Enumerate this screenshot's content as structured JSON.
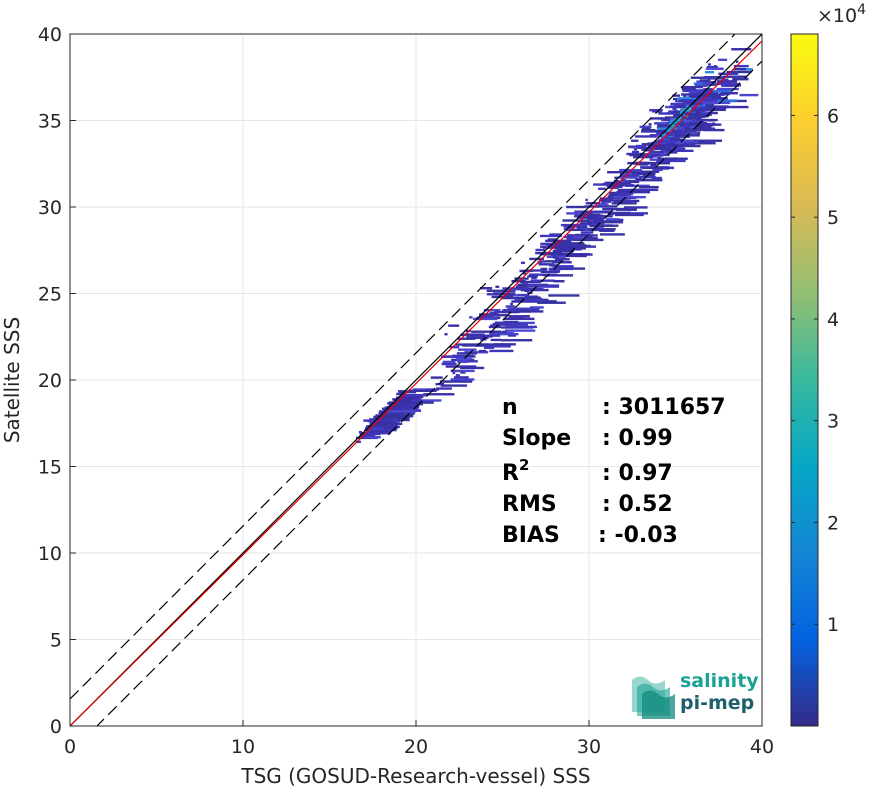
{
  "chart_data": {
    "type": "heatmap",
    "xlabel": "TSG (GOSUD-Research-vessel) SSS",
    "ylabel": "Satellite SSS",
    "xlim": [
      0,
      40
    ],
    "ylim": [
      0,
      40
    ],
    "xticks": [
      0,
      10,
      20,
      30,
      40
    ],
    "yticks": [
      0,
      5,
      10,
      15,
      20,
      25,
      30,
      35,
      40
    ],
    "grid": true,
    "colorbar": {
      "range": [
        0,
        68000
      ],
      "ticks": [
        1,
        2,
        3,
        4,
        5,
        6
      ],
      "exponent_label_base": "×10",
      "exponent_label_power": "4",
      "colormap": "parula"
    },
    "density_clusters": [
      {
        "x": 35.5,
        "y": 35.5,
        "x_spread": 4.0,
        "y_spread": 3.5,
        "weight": 1.0
      },
      {
        "x": 32.0,
        "y": 31.5,
        "x_spread": 8.0,
        "y_spread": 3.0,
        "weight": 0.55
      },
      {
        "x": 27.0,
        "y": 26.5,
        "x_spread": 9.0,
        "y_spread": 3.0,
        "weight": 0.3
      },
      {
        "x": 24.0,
        "y": 22.5,
        "x_spread": 6.0,
        "y_spread": 3.0,
        "weight": 0.2
      },
      {
        "x": 18.0,
        "y": 18.0,
        "x_spread": 2.0,
        "y_spread": 1.0,
        "weight": 0.5
      }
    ],
    "reference_lines": [
      {
        "name": "one-to-one",
        "color": "#000000",
        "style": "solid",
        "slope": 1.0,
        "intercept": 0.0
      },
      {
        "name": "regression",
        "color": "#e60000",
        "style": "solid",
        "slope": 0.99,
        "intercept": 0.0
      },
      {
        "name": "upper-bound",
        "color": "#000000",
        "style": "dashed",
        "slope": 1.0,
        "intercept": 1.56
      },
      {
        "name": "lower-bound",
        "color": "#000000",
        "style": "dashed",
        "slope": 1.0,
        "intercept": -1.56
      }
    ],
    "stats": [
      {
        "label": "n",
        "value": ": 3011657"
      },
      {
        "label": "Slope",
        "value": ": 0.99"
      },
      {
        "label": "R",
        "sup": "2",
        "value": ": 0.97"
      },
      {
        "label": "RMS",
        "value": ": 0.52"
      },
      {
        "label": "BIAS",
        "value": ": -0.03"
      }
    ]
  },
  "logo": {
    "line1": "salinity",
    "line2": "pi-mep",
    "color": "#1aa394"
  }
}
